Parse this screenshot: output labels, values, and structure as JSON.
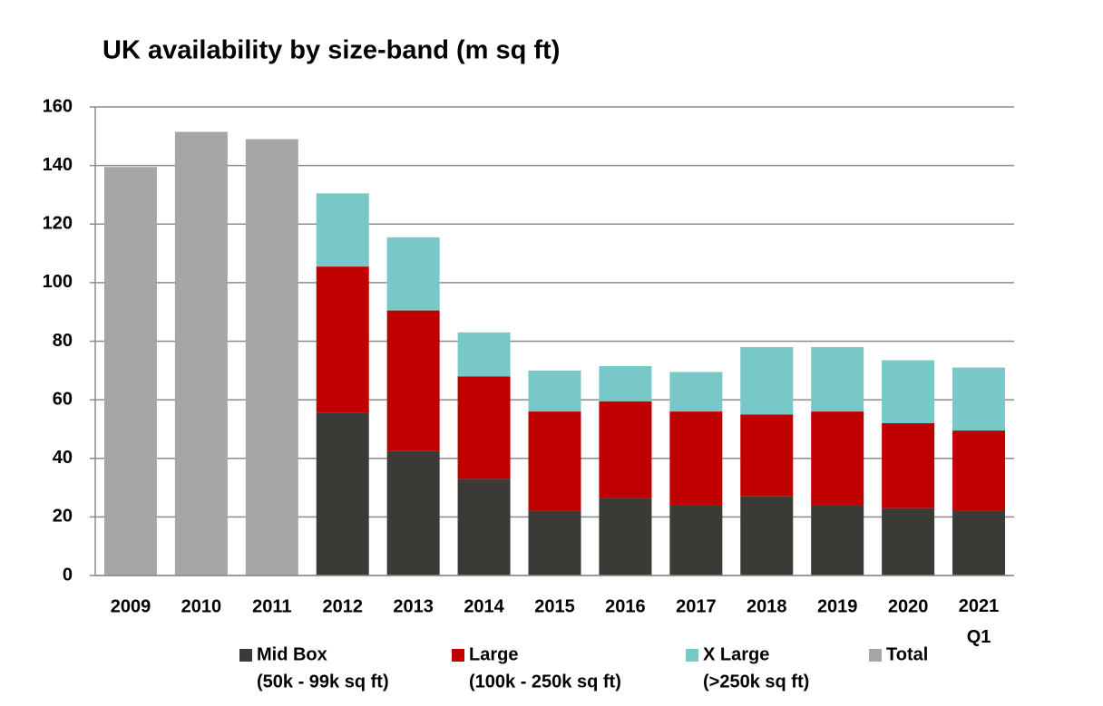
{
  "chart_data": {
    "type": "bar",
    "stacked": true,
    "title": "UK availability by size-band (m sq ft)",
    "categories": [
      "2009",
      "2010",
      "2011",
      "2012",
      "2013",
      "2014",
      "2015",
      "2016",
      "2017",
      "2018",
      "2019",
      "2020",
      "2021 Q1"
    ],
    "series": [
      {
        "name": "Mid Box",
        "description": "(50k - 99k sq ft)",
        "color": "#3c3a36",
        "values": [
          null,
          null,
          null,
          55.5,
          42.5,
          33,
          22,
          26.5,
          24,
          27,
          24,
          23,
          22
        ]
      },
      {
        "name": "Large",
        "description": "(100k - 250k sq ft)",
        "color": "#c00000",
        "values": [
          null,
          null,
          null,
          50,
          48,
          35,
          34,
          33,
          32,
          28,
          32,
          29,
          27.5
        ]
      },
      {
        "name": "X Large",
        "description": "(>250k sq ft)",
        "color": "#78c8c8",
        "values": [
          null,
          null,
          null,
          25,
          25,
          15,
          14,
          12,
          13.5,
          23,
          22,
          21.5,
          21.5
        ]
      },
      {
        "name": "Total",
        "color": "#a6a6a6",
        "values": [
          139.5,
          151.5,
          149,
          null,
          null,
          null,
          null,
          null,
          null,
          null,
          null,
          null,
          null
        ]
      }
    ],
    "ylim": [
      0,
      160
    ],
    "yticks": [
      0,
      20,
      40,
      60,
      80,
      100,
      120,
      140,
      160
    ],
    "grid": true
  }
}
